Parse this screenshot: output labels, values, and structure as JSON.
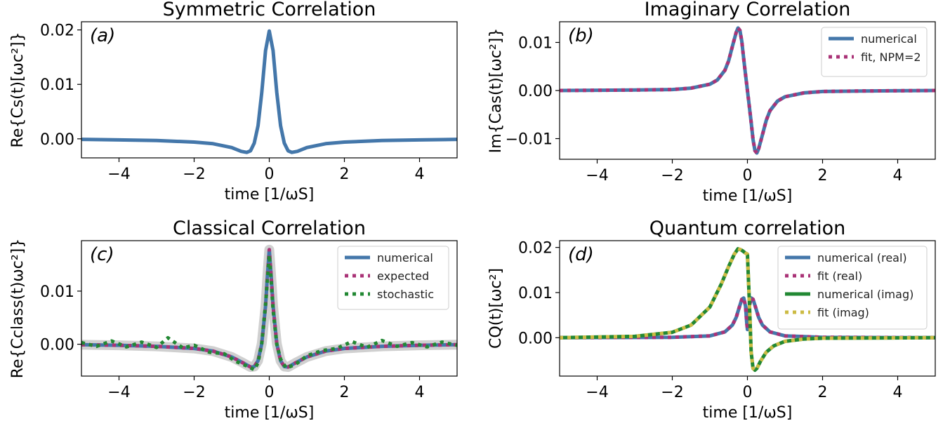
{
  "figure": {
    "panels": [
      {
        "id": "a",
        "title": "Symmetric Correlation",
        "letter": "(a)",
        "xlabel": "time [1/ωS]",
        "ylabel": "Re{Cs(t)[ωc²]}"
      },
      {
        "id": "b",
        "title": "Imaginary Correlation",
        "letter": "(b)",
        "xlabel": "time [1/ωS]",
        "ylabel": "Im{Cas(t)[ωc²]}"
      },
      {
        "id": "c",
        "title": "Classical Correlation",
        "letter": "(c)",
        "xlabel": "time [1/ωS]",
        "ylabel": "Re{Cclass(t)ωc²]}"
      },
      {
        "id": "d",
        "title": "Quantum correlation",
        "letter": "(d)",
        "xlabel": "time [1/ωS]",
        "ylabel": "CQ(t)[ωc²]"
      }
    ],
    "colors": {
      "numerical": "#4477aa",
      "fit_real": "#aa3377",
      "numerical_imag": "#228833",
      "fit_imag": "#ccbb44",
      "band": "#aaaaaa"
    }
  },
  "chart_data": [
    {
      "type": "line",
      "title": "Symmetric Correlation",
      "xlabel": "time [1/ωS]",
      "ylabel": "Re{Cs(t)[ωc²]}",
      "xlim": [
        -5,
        5
      ],
      "ylim": [
        -0.0035,
        0.0215
      ],
      "xticks": [
        -4,
        -2,
        0,
        2,
        4
      ],
      "xtick_labels": [
        "−4",
        "−2",
        "0",
        "2",
        "4"
      ],
      "yticks": [
        0.0,
        0.01,
        0.02
      ],
      "ytick_labels": [
        "0.00",
        "0.01",
        "0.02"
      ],
      "series": [
        {
          "x": [
            -5,
            -4,
            -3,
            -2,
            -1.5,
            -1,
            -0.75,
            -0.6,
            -0.5,
            -0.4,
            -0.3,
            -0.2,
            -0.1,
            0,
            0.1,
            0.2,
            0.3,
            0.4,
            0.5,
            0.6,
            0.75,
            1,
            1.5,
            2,
            3,
            4,
            5
          ],
          "y": [
            -0.0001,
            -0.0002,
            -0.0003,
            -0.0006,
            -0.0009,
            -0.0016,
            -0.0023,
            -0.0025,
            -0.0022,
            -0.0008,
            0.0024,
            0.0085,
            0.0162,
            0.0198,
            0.0162,
            0.0085,
            0.0024,
            -0.0008,
            -0.0022,
            -0.0025,
            -0.0023,
            -0.0016,
            -0.0009,
            -0.0006,
            -0.0003,
            -0.0002,
            -0.0001
          ]
        }
      ]
    },
    {
      "type": "line",
      "title": "Imaginary Correlation",
      "xlabel": "time [1/ωS]",
      "ylabel": "Im{Cas(t)[ωc²]}",
      "xlim": [
        -5,
        5
      ],
      "ylim": [
        -0.0143,
        0.0143
      ],
      "xticks": [
        -4,
        -2,
        0,
        2,
        4
      ],
      "xtick_labels": [
        "−4",
        "−2",
        "0",
        "2",
        "4"
      ],
      "yticks": [
        -0.01,
        0.0,
        0.01
      ],
      "ytick_labels": [
        "−0.01",
        "0.00",
        "0.01"
      ],
      "legend": {
        "position": "top-right",
        "entries": [
          "numerical",
          "fit, NPM=2"
        ]
      },
      "series": [
        {
          "name": "numerical",
          "x": [
            -5,
            -3,
            -2,
            -1.5,
            -1,
            -0.8,
            -0.6,
            -0.5,
            -0.4,
            -0.3,
            -0.25,
            -0.2,
            -0.15,
            -0.1,
            -0.05,
            0,
            0.05,
            0.1,
            0.15,
            0.2,
            0.25,
            0.3,
            0.4,
            0.5,
            0.6,
            0.8,
            1,
            1.5,
            2,
            3,
            5
          ],
          "y": [
            0.0,
            0.0001,
            0.0002,
            0.0005,
            0.0013,
            0.0022,
            0.0042,
            0.0062,
            0.0092,
            0.0121,
            0.013,
            0.0125,
            0.0102,
            0.0066,
            0.0033,
            0.0,
            -0.0033,
            -0.0066,
            -0.0102,
            -0.0125,
            -0.013,
            -0.0121,
            -0.0092,
            -0.0062,
            -0.0042,
            -0.0022,
            -0.0013,
            -0.0005,
            -0.0002,
            -0.0001,
            0.0
          ]
        },
        {
          "name": "fit, NPM=2",
          "x": [
            -5,
            -3,
            -2,
            -1.5,
            -1,
            -0.8,
            -0.6,
            -0.5,
            -0.4,
            -0.3,
            -0.25,
            -0.2,
            -0.15,
            -0.1,
            -0.05,
            0,
            0.05,
            0.1,
            0.15,
            0.2,
            0.25,
            0.3,
            0.4,
            0.5,
            0.6,
            0.8,
            1,
            1.5,
            2,
            3,
            5
          ],
          "y": [
            0.0,
            0.0001,
            0.0002,
            0.0005,
            0.0013,
            0.0022,
            0.0042,
            0.0062,
            0.0092,
            0.0121,
            0.013,
            0.0125,
            0.0102,
            0.0066,
            0.0033,
            0.0,
            -0.0033,
            -0.0066,
            -0.0102,
            -0.0125,
            -0.013,
            -0.0121,
            -0.0092,
            -0.0062,
            -0.0042,
            -0.0022,
            -0.0013,
            -0.0005,
            -0.0002,
            -0.0001,
            0.0
          ]
        }
      ]
    },
    {
      "type": "line",
      "title": "Classical Correlation",
      "xlabel": "time [1/ωS]",
      "ylabel": "Re{Cclass(t)ωc²]}",
      "xlim": [
        -5,
        5
      ],
      "ylim": [
        -0.006,
        0.0195
      ],
      "xticks": [
        -4,
        -2,
        0,
        2,
        4
      ],
      "xtick_labels": [
        "−4",
        "−2",
        "0",
        "2",
        "4"
      ],
      "yticks": [
        0.0,
        0.01
      ],
      "ytick_labels": [
        "0.00",
        "0.01"
      ],
      "legend": {
        "position": "top-right",
        "entries": [
          "numerical",
          "expected",
          "stochastic"
        ]
      },
      "series": [
        {
          "name": "numerical",
          "x": [
            -5,
            -4,
            -3,
            -2,
            -1.5,
            -1,
            -0.7,
            -0.5,
            -0.4,
            -0.3,
            -0.2,
            -0.1,
            -0.05,
            0,
            0.05,
            0.1,
            0.2,
            0.3,
            0.4,
            0.5,
            0.7,
            1,
            1.5,
            2,
            3,
            4,
            5
          ],
          "y": [
            -0.0001,
            -0.0002,
            -0.0004,
            -0.0008,
            -0.0013,
            -0.0024,
            -0.0035,
            -0.0043,
            -0.0042,
            -0.0031,
            0.0001,
            0.0072,
            0.0128,
            0.0178,
            0.0128,
            0.0072,
            0.0001,
            -0.0031,
            -0.0042,
            -0.0043,
            -0.0035,
            -0.0024,
            -0.0013,
            -0.0008,
            -0.0004,
            -0.0002,
            -0.0001
          ]
        },
        {
          "name": "expected",
          "x": [
            -5,
            -4,
            -3,
            -2,
            -1.5,
            -1,
            -0.7,
            -0.5,
            -0.4,
            -0.3,
            -0.2,
            -0.1,
            -0.05,
            0,
            0.05,
            0.1,
            0.2,
            0.3,
            0.4,
            0.5,
            0.7,
            1,
            1.5,
            2,
            3,
            4,
            5
          ],
          "y": [
            -0.0001,
            -0.0002,
            -0.0004,
            -0.0008,
            -0.0013,
            -0.0024,
            -0.0035,
            -0.0043,
            -0.0042,
            -0.0031,
            0.0001,
            0.0072,
            0.0128,
            0.0178,
            0.0128,
            0.0072,
            0.0001,
            -0.0031,
            -0.0042,
            -0.0043,
            -0.0035,
            -0.0024,
            -0.0013,
            -0.0008,
            -0.0004,
            -0.0002,
            -0.0001
          ]
        },
        {
          "name": "stochastic",
          "x": [
            -5,
            -4.6,
            -4.2,
            -3.8,
            -3.4,
            -3.0,
            -2.7,
            -2.3,
            -2.0,
            -1.6,
            -1.2,
            -0.9,
            -0.6,
            -0.4,
            -0.3,
            -0.2,
            -0.1,
            -0.05,
            0,
            0.05,
            0.1,
            0.2,
            0.3,
            0.45,
            0.7,
            1.0,
            1.4,
            1.8,
            2.2,
            2.6,
            3.0,
            3.4,
            3.8,
            4.2,
            4.6,
            5
          ],
          "y": [
            0.0003,
            -0.0004,
            0.0006,
            -0.0005,
            0.0004,
            -0.0006,
            0.0012,
            -0.0007,
            -0.0002,
            -0.0015,
            -0.0018,
            -0.0032,
            -0.0041,
            -0.0048,
            -0.0035,
            0.0002,
            0.0075,
            0.012,
            0.0168,
            0.012,
            0.0065,
            0.0,
            -0.0028,
            -0.0045,
            -0.0038,
            -0.0022,
            -0.0012,
            -0.0008,
            0.0005,
            -0.0006,
            0.0007,
            -0.0004,
            0.0003,
            -0.0005,
            0.0004,
            -0.0002
          ]
        }
      ]
    },
    {
      "type": "line",
      "title": "Quantum correlation",
      "xlabel": "time [1/ωS]",
      "ylabel": "CQ(t)[ωc²]",
      "xlim": [
        -5,
        5
      ],
      "ylim": [
        -0.0085,
        0.0215
      ],
      "xticks": [
        -4,
        -2,
        0,
        2,
        4
      ],
      "xtick_labels": [
        "−4",
        "−2",
        "0",
        "2",
        "4"
      ],
      "yticks": [
        0.0,
        0.01,
        0.02
      ],
      "ytick_labels": [
        "0.00",
        "0.01",
        "0.02"
      ],
      "legend": {
        "position": "top-right",
        "entries": [
          "numerical (real)",
          "fit (real)",
          "numerical (imag)",
          "fit (imag)"
        ]
      },
      "series": [
        {
          "name": "numerical (real)",
          "x": [
            -5,
            -2,
            -1,
            -0.6,
            -0.4,
            -0.3,
            -0.2,
            -0.15,
            -0.1,
            -0.05,
            -0.02,
            0,
            0.02,
            0.05,
            0.1,
            0.15,
            0.2,
            0.3,
            0.4,
            0.6,
            1,
            2,
            5
          ],
          "y": [
            0.0,
            0.0001,
            0.0004,
            0.0013,
            0.0028,
            0.0045,
            0.0072,
            0.0085,
            0.0088,
            0.007,
            0.0035,
            0.0018,
            0.0035,
            0.007,
            0.0088,
            0.0085,
            0.0072,
            0.0045,
            0.0028,
            0.0013,
            0.0004,
            0.0001,
            0.0
          ]
        },
        {
          "name": "fit (real)",
          "x": [
            -5,
            -2,
            -1,
            -0.6,
            -0.4,
            -0.3,
            -0.2,
            -0.15,
            -0.1,
            -0.05,
            -0.02,
            0,
            0.02,
            0.05,
            0.1,
            0.15,
            0.2,
            0.3,
            0.4,
            0.6,
            1,
            2,
            5
          ],
          "y": [
            0.0,
            0.0001,
            0.0004,
            0.0013,
            0.0028,
            0.0045,
            0.0072,
            0.0085,
            0.0088,
            0.007,
            0.0035,
            0.0018,
            0.0035,
            0.007,
            0.0088,
            0.0085,
            0.0072,
            0.0045,
            0.0028,
            0.0013,
            0.0004,
            0.0001,
            0.0
          ]
        },
        {
          "name": "numerical (imag)",
          "x": [
            -5,
            -3,
            -2,
            -1.5,
            -1,
            -0.7,
            -0.5,
            -0.35,
            -0.25,
            -0.18,
            -0.12,
            -0.06,
            0,
            0.05,
            0.1,
            0.15,
            0.2,
            0.25,
            0.35,
            0.5,
            0.7,
            1,
            1.5,
            2,
            5
          ],
          "y": [
            0.0,
            0.0003,
            0.0012,
            0.0028,
            0.0068,
            0.0118,
            0.0158,
            0.0185,
            0.0197,
            0.0195,
            0.0192,
            0.0188,
            0.0185,
            0.0082,
            -0.0032,
            -0.0068,
            -0.0072,
            -0.0068,
            -0.0052,
            -0.0032,
            -0.0018,
            -0.0008,
            -0.0003,
            -0.0001,
            0.0
          ]
        },
        {
          "name": "fit (imag)",
          "x": [
            -5,
            -3,
            -2,
            -1.5,
            -1,
            -0.7,
            -0.5,
            -0.35,
            -0.25,
            -0.18,
            -0.12,
            -0.06,
            0,
            0.05,
            0.1,
            0.15,
            0.2,
            0.25,
            0.35,
            0.5,
            0.7,
            1,
            1.5,
            2,
            5
          ],
          "y": [
            0.0,
            0.0003,
            0.0012,
            0.0028,
            0.0068,
            0.0118,
            0.0158,
            0.0185,
            0.0197,
            0.0195,
            0.0192,
            0.0188,
            0.0185,
            0.0082,
            -0.0032,
            -0.0068,
            -0.0072,
            -0.0068,
            -0.0052,
            -0.0032,
            -0.0018,
            -0.0008,
            -0.0003,
            -0.0001,
            0.0
          ]
        }
      ]
    }
  ]
}
